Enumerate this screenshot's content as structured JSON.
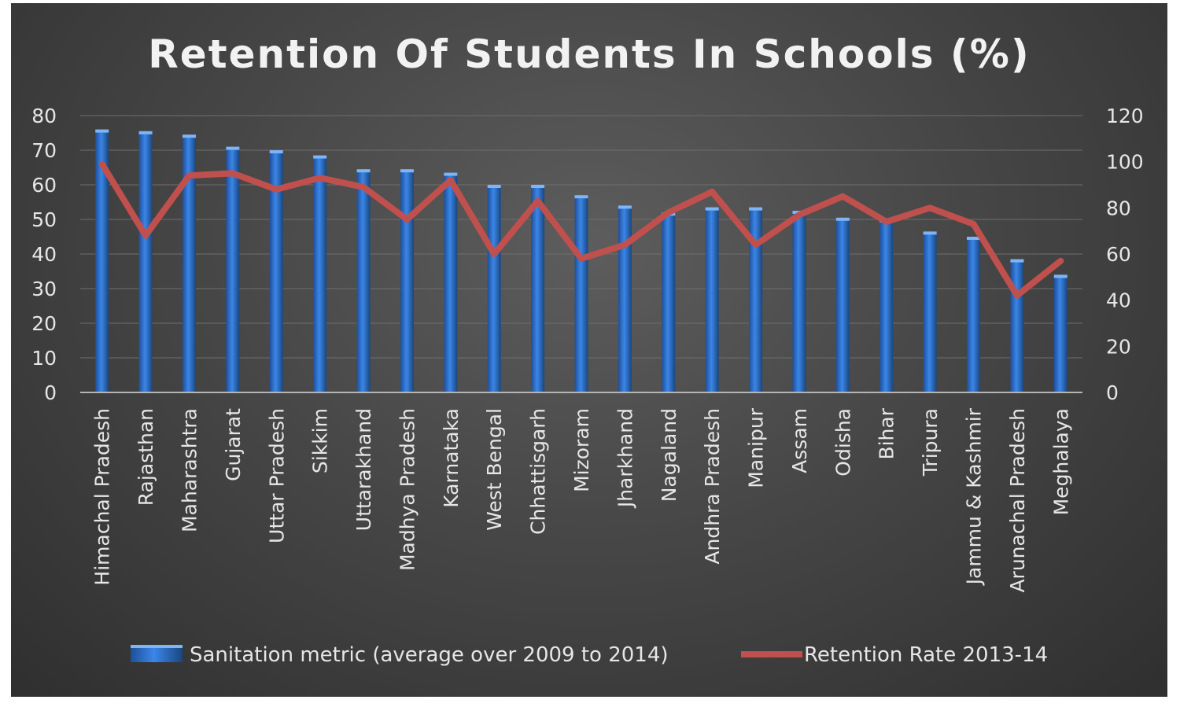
{
  "chart_data": {
    "type": "bar",
    "title": "Retention Of Students In Schools (%)",
    "categories": [
      "Himachal Pradesh",
      "Rajasthan",
      "Maharashtra",
      "Gujarat",
      "Uttar Pradesh",
      "Sikkim",
      "Uttarakhand",
      "Madhya Pradesh",
      "Karnataka",
      "West Bengal",
      "Chhattisgarh",
      "Mizoram",
      "Jharkhand",
      "Nagaland",
      "Andhra Pradesh",
      "Manipur",
      "Assam",
      "Odisha",
      "Bihar",
      "Tripura",
      "Jammu & Kashmir",
      "Arunachal Pradesh",
      "Meghalaya"
    ],
    "series": [
      {
        "name": "Sanitation metric (average over 2009 to 2014)",
        "type": "bar",
        "axis": "left",
        "color": "#2e75d6",
        "values": [
          76,
          75.5,
          74.5,
          71,
          70,
          68.5,
          64.5,
          64.5,
          63.5,
          60,
          60,
          57,
          54,
          52,
          53.5,
          53.5,
          52.5,
          50.5,
          50,
          46.5,
          45,
          38.5,
          34
        ]
      },
      {
        "name": "Retention Rate 2013-14",
        "type": "line",
        "axis": "right",
        "color": "#c0504d",
        "values": [
          99,
          68,
          94,
          95,
          88,
          93,
          89,
          75,
          92,
          60,
          83,
          58,
          64,
          78,
          87,
          64,
          77,
          85,
          74,
          80,
          73,
          42,
          57
        ]
      }
    ],
    "y_left": {
      "ticks": [
        "0",
        "10",
        "20",
        "30",
        "40",
        "50",
        "60",
        "70",
        "80"
      ],
      "range": [
        0,
        80
      ]
    },
    "y_right": {
      "ticks": [
        "0",
        "20",
        "40",
        "60",
        "80",
        "100",
        "120"
      ],
      "range": [
        0,
        120
      ]
    },
    "grid": true,
    "legend_position": "bottom"
  }
}
